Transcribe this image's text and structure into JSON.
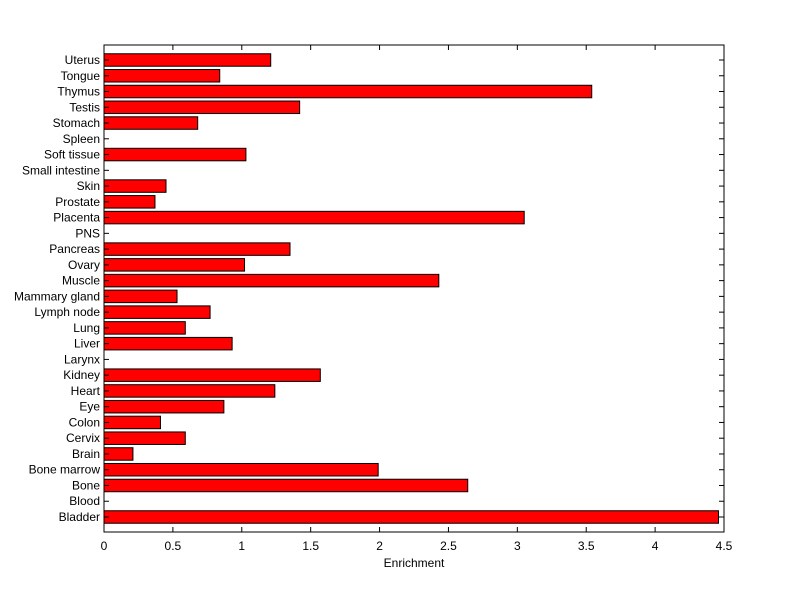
{
  "chart_data": {
    "type": "bar",
    "orientation": "horizontal",
    "title": "",
    "xlabel": "Enrichment",
    "ylabel": "",
    "xlim": [
      0,
      4.5
    ],
    "xticks": [
      "0",
      "0.5",
      "1",
      "1.5",
      "2",
      "2.5",
      "3",
      "3.5",
      "4",
      "4.5"
    ],
    "grid": false,
    "bar_color": "#ff0000",
    "bar_edge_color": "#000000",
    "categories": [
      "Bladder",
      "Blood",
      "Bone",
      "Bone marrow",
      "Brain",
      "Cervix",
      "Colon",
      "Eye",
      "Heart",
      "Kidney",
      "Larynx",
      "Liver",
      "Lung",
      "Lymph node",
      "Mammary gland",
      "Muscle",
      "Ovary",
      "Pancreas",
      "PNS",
      "Placenta",
      "Prostate",
      "Skin",
      "Small intestine",
      "Soft tissue",
      "Spleen",
      "Stomach",
      "Testis",
      "Thymus",
      "Tongue",
      "Uterus"
    ],
    "values": [
      4.46,
      0,
      2.64,
      1.99,
      0.21,
      0.59,
      0.41,
      0.87,
      1.24,
      1.57,
      0,
      0.93,
      0.59,
      0.77,
      0.53,
      2.43,
      1.02,
      1.35,
      0,
      3.05,
      0.37,
      0.45,
      0,
      1.03,
      0,
      0.68,
      1.42,
      3.54,
      0.84,
      1.21
    ]
  }
}
